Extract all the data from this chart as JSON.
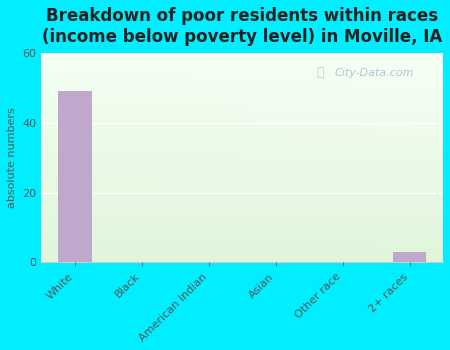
{
  "title": "Breakdown of poor residents within races\n(income below poverty level) in Moville, IA",
  "categories": [
    "White",
    "Black",
    "American Indian",
    "Asian",
    "Other race",
    "2+ races"
  ],
  "values": [
    49,
    0,
    0,
    0,
    0,
    3
  ],
  "bar_color": "#c0a8cc",
  "ylabel": "absolute numbers",
  "ylim": [
    0,
    60
  ],
  "yticks": [
    0,
    20,
    40,
    60
  ],
  "outer_bg": "#00eeff",
  "title_fontsize": 12,
  "label_fontsize": 8,
  "watermark": "City-Data.com",
  "bg_left": "#e0f0d8",
  "bg_right": "#f8fff8",
  "bg_top": "#f0fef0",
  "bg_bottom": "#d8eed0"
}
